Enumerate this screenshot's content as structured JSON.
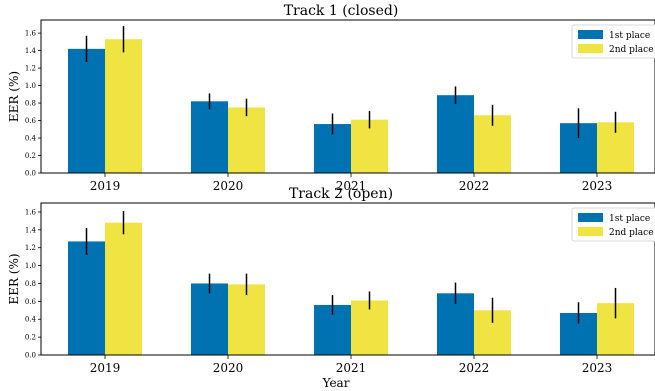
{
  "chart_data": [
    {
      "type": "bar",
      "title": "Track 1 (closed)",
      "ylabel": "EER (%)",
      "xlabel": "",
      "categories": [
        "2019",
        "2020",
        "2021",
        "2022",
        "2023"
      ],
      "ylim": [
        0,
        1.75
      ],
      "yticks": [
        "0.0",
        "0.2",
        "0.4",
        "0.6",
        "0.8",
        "1.0",
        "1.2",
        "1.4",
        "1.6"
      ],
      "legend": "top-right",
      "grid": false,
      "series": [
        {
          "name": "1st place",
          "color": "#0072b2",
          "values": [
            1.42,
            0.82,
            0.56,
            0.89,
            0.57
          ],
          "errors": [
            0.15,
            0.09,
            0.12,
            0.1,
            0.17
          ]
        },
        {
          "name": "2nd place",
          "color": "#f0e442",
          "values": [
            1.53,
            0.75,
            0.61,
            0.66,
            0.58
          ],
          "errors": [
            0.15,
            0.1,
            0.1,
            0.12,
            0.12
          ]
        }
      ]
    },
    {
      "type": "bar",
      "title": "Track 2 (open)",
      "ylabel": "EER (%)",
      "xlabel": "Year",
      "categories": [
        "2019",
        "2020",
        "2021",
        "2022",
        "2023"
      ],
      "ylim": [
        0,
        1.7
      ],
      "yticks": [
        "0.0",
        "0.2",
        "0.4",
        "0.6",
        "0.8",
        "1.0",
        "1.2",
        "1.4",
        "1.6"
      ],
      "legend": "top-right",
      "grid": false,
      "series": [
        {
          "name": "1st place",
          "color": "#0072b2",
          "values": [
            1.27,
            0.8,
            0.56,
            0.69,
            0.47
          ],
          "errors": [
            0.15,
            0.11,
            0.11,
            0.12,
            0.12
          ]
        },
        {
          "name": "2nd place",
          "color": "#f0e442",
          "values": [
            1.48,
            0.79,
            0.61,
            0.5,
            0.58
          ],
          "errors": [
            0.13,
            0.12,
            0.1,
            0.14,
            0.17
          ]
        }
      ]
    }
  ]
}
